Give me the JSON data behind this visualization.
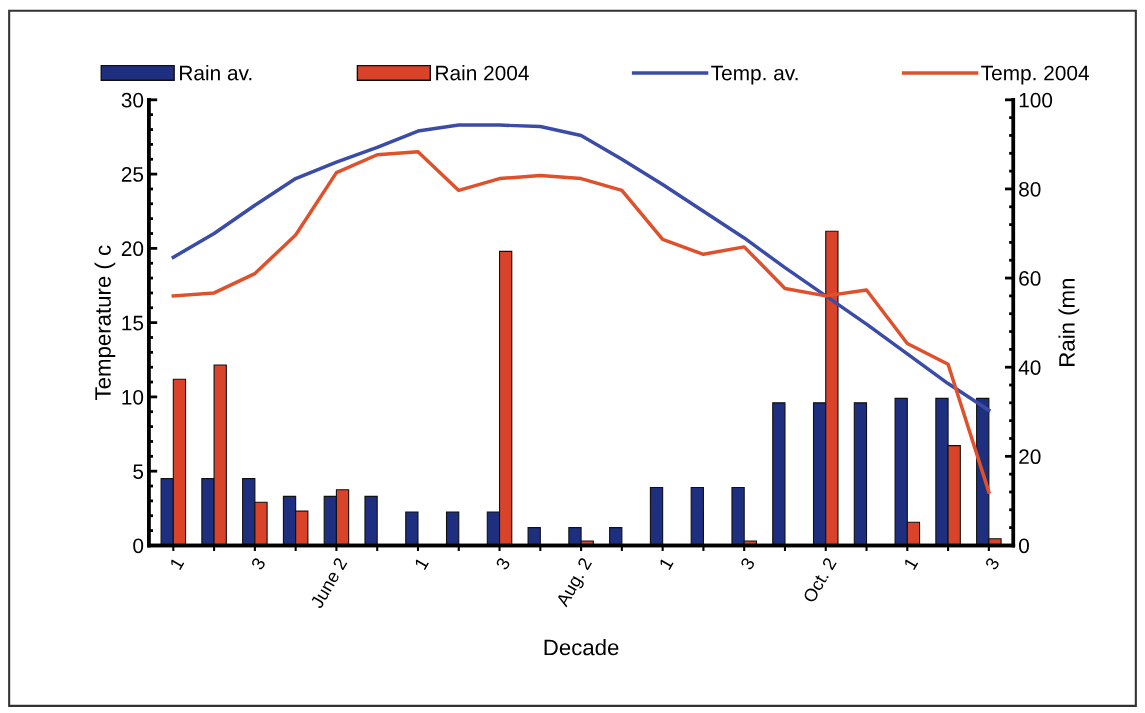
{
  "chart_data": {
    "type": "bar",
    "xlabel": "Decade",
    "ylabel": "Temperature ( c",
    "y2label": "Rain (mn",
    "categories": [
      "1",
      null,
      "3",
      null,
      "June 2",
      null,
      "1",
      null,
      "3",
      null,
      "Aug. 2",
      null,
      "1",
      null,
      "3",
      null,
      "Oct. 2",
      null,
      "1",
      null,
      "3"
    ],
    "series": [
      {
        "name": "Rain av.",
        "axis": "y2",
        "color": "#1f2f80",
        "values": [
          15,
          15,
          15,
          11,
          11,
          11,
          7.5,
          7.5,
          7.5,
          4,
          4,
          4,
          13,
          13,
          13,
          32,
          32,
          32,
          33,
          33,
          33
        ]
      },
      {
        "name": "Rain 2004",
        "axis": "y2",
        "color": "#d8432a",
        "values": [
          37.3,
          40.5,
          9.7,
          7.7,
          12.5,
          0,
          0,
          0,
          66,
          0,
          1,
          0,
          0,
          0,
          1,
          0,
          70.5,
          0,
          5.2,
          22.4,
          1.5
        ]
      },
      {
        "name": "Temp. av.",
        "type": "line",
        "color": "#3a4ca8",
        "values": [
          19.4,
          21.0,
          22.9,
          24.7,
          25.8,
          26.8,
          27.9,
          28.3,
          28.3,
          28.2,
          27.6,
          26.0,
          24.3,
          22.5,
          20.7,
          18.7,
          16.8,
          14.9,
          12.9,
          10.9,
          9.1
        ]
      },
      {
        "name": "Temp. 2004",
        "type": "line",
        "color": "#e0502a",
        "values": [
          16.8,
          17.0,
          18.3,
          20.9,
          25.1,
          26.3,
          26.5,
          23.9,
          24.7,
          24.9,
          24.7,
          23.9,
          20.6,
          19.6,
          20.1,
          17.3,
          16.8,
          17.2,
          13.6,
          12.2,
          3.6
        ]
      }
    ],
    "ylim": [
      0,
      30
    ],
    "yticks": [
      0,
      5,
      10,
      15,
      20,
      25,
      30
    ],
    "y2lim": [
      0,
      100
    ],
    "y2ticks": [
      0,
      20,
      40,
      60,
      80,
      100
    ],
    "legend": "top",
    "grid": false,
    "marker": "none",
    "line_style": "solid"
  }
}
